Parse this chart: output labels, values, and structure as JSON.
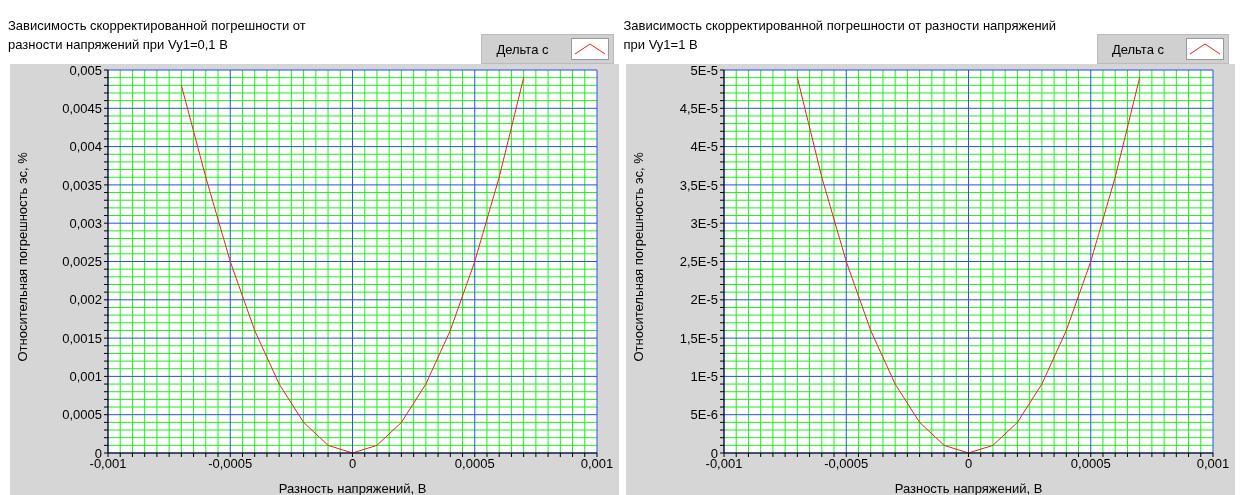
{
  "chart_data": [
    {
      "type": "line",
      "title": "Зависимость скорректированной погрешности от разности напряжений при Vy1=0,1 В",
      "xlabel": "Разность напряжений, В",
      "ylabel": "Относительная погрешность эс, %",
      "x": [
        -0.0007,
        -0.0006,
        -0.0005,
        -0.0004,
        -0.0003,
        -0.0002,
        -0.0001,
        0,
        0.0001,
        0.0002,
        0.0003,
        0.0004,
        0.0005,
        0.0006,
        0.0007
      ],
      "series": [
        {
          "name": "Дельта с",
          "color": "#e8231e",
          "values": [
            0.0048,
            0.0036,
            0.0025,
            0.0016,
            0.0009,
            0.0004,
            0.0001,
            0,
            0.0001,
            0.0004,
            0.0009,
            0.0016,
            0.0025,
            0.0036,
            0.0049
          ]
        }
      ],
      "xlim": [
        -0.001,
        0.001
      ],
      "xticks": [
        {
          "value": -0.001,
          "label": "-0,001"
        },
        {
          "value": -0.00095,
          "label": null
        },
        {
          "value": -0.0009,
          "label": null
        },
        {
          "value": -0.00085,
          "label": null
        },
        {
          "value": -0.0008,
          "label": null
        },
        {
          "value": -0.00075,
          "label": null
        },
        {
          "value": -0.0007,
          "label": null
        },
        {
          "value": -0.00065,
          "label": null
        },
        {
          "value": -0.0006,
          "label": null
        },
        {
          "value": -0.00055,
          "label": null
        },
        {
          "value": -0.0005,
          "label": "-0,0005"
        },
        {
          "value": -0.00045,
          "label": null
        },
        {
          "value": -0.0004,
          "label": null
        },
        {
          "value": -0.00035,
          "label": null
        },
        {
          "value": -0.0003,
          "label": null
        },
        {
          "value": -0.00025,
          "label": null
        },
        {
          "value": -0.0002,
          "label": null
        },
        {
          "value": -0.00015,
          "label": null
        },
        {
          "value": -0.0001,
          "label": null
        },
        {
          "value": -5e-05,
          "label": null
        },
        0,
        {
          "value": 5e-05,
          "label": null
        },
        {
          "value": 0.0001,
          "label": null
        },
        {
          "value": 0.00015,
          "label": null
        },
        {
          "value": 0.0002,
          "label": null
        },
        {
          "value": 0.00025,
          "label": null
        },
        {
          "value": 0.0003,
          "label": null
        },
        {
          "value": 0.00035,
          "label": null
        },
        {
          "value": 0.0004,
          "label": null
        },
        {
          "value": 0.00045,
          "label": null
        },
        {
          "value": 0.0005,
          "label": "0,0005"
        },
        {
          "value": 0.00055,
          "label": null
        },
        {
          "value": 0.0006,
          "label": null
        },
        {
          "value": 0.00065,
          "label": null
        },
        {
          "value": 0.0007,
          "label": null
        },
        {
          "value": 0.00075,
          "label": null
        },
        {
          "value": 0.0008,
          "label": null
        },
        {
          "value": 0.00085,
          "label": null
        },
        {
          "value": 0.0009,
          "label": null
        },
        {
          "value": 0.00095,
          "label": null
        },
        {
          "value": 0.001,
          "label": "0,001"
        }
      ],
      "ylim": [
        0,
        0.005
      ],
      "yticks": [
        0,
        {
          "value": 0.0001,
          "label": null
        },
        {
          "value": 0.0002,
          "label": null
        },
        {
          "value": 0.0003,
          "label": null
        },
        {
          "value": 0.0004,
          "label": null
        },
        {
          "value": 0.0005,
          "label": "0,0005"
        },
        {
          "value": 0.0006,
          "label": null
        },
        {
          "value": 0.0007,
          "label": null
        },
        {
          "value": 0.0008,
          "label": null
        },
        {
          "value": 0.0009,
          "label": null
        },
        {
          "value": 0.001,
          "label": "0,001"
        },
        {
          "value": 0.0011,
          "label": null
        },
        {
          "value": 0.0012,
          "label": null
        },
        {
          "value": 0.0013,
          "label": null
        },
        {
          "value": 0.0014,
          "label": null
        },
        {
          "value": 0.0015,
          "label": "0,0015"
        },
        {
          "value": 0.0016,
          "label": null
        },
        {
          "value": 0.0017,
          "label": null
        },
        {
          "value": 0.0018,
          "label": null
        },
        {
          "value": 0.0019,
          "label": null
        },
        {
          "value": 0.002,
          "label": "0,002"
        },
        {
          "value": 0.0021,
          "label": null
        },
        {
          "value": 0.0022,
          "label": null
        },
        {
          "value": 0.0023,
          "label": null
        },
        {
          "value": 0.0024,
          "label": null
        },
        {
          "value": 0.0025,
          "label": "0,0025"
        },
        {
          "value": 0.0026,
          "label": null
        },
        {
          "value": 0.0027,
          "label": null
        },
        {
          "value": 0.0028,
          "label": null
        },
        {
          "value": 0.0029,
          "label": null
        },
        {
          "value": 0.003,
          "label": "0,003"
        },
        {
          "value": 0.0031,
          "label": null
        },
        {
          "value": 0.0032,
          "label": null
        },
        {
          "value": 0.0033,
          "label": null
        },
        {
          "value": 0.0034,
          "label": null
        },
        {
          "value": 0.0035,
          "label": "0,0035"
        },
        {
          "value": 0.0036,
          "label": null
        },
        {
          "value": 0.0037,
          "label": null
        },
        {
          "value": 0.0038,
          "label": null
        },
        {
          "value": 0.0039,
          "label": null
        },
        {
          "value": 0.004,
          "label": "0,004"
        },
        {
          "value": 0.0041,
          "label": null
        },
        {
          "value": 0.0042,
          "label": null
        },
        {
          "value": 0.0043,
          "label": null
        },
        {
          "value": 0.0044,
          "label": null
        },
        {
          "value": 0.0045,
          "label": "0,0045"
        },
        {
          "value": 0.0046,
          "label": null
        },
        {
          "value": 0.0047,
          "label": null
        },
        {
          "value": 0.0048,
          "label": null
        },
        {
          "value": 0.0049,
          "label": null
        },
        {
          "value": 0.005,
          "label": "0,005"
        }
      ],
      "grid": true,
      "legend": "top right",
      "marker": "none",
      "line_style": "solid"
    },
    {
      "type": "line",
      "title": "Зависимость скорректированной погрешности от разности напряжений при Vy1=1 В",
      "xlabel": "Разность напряжений, В",
      "ylabel": "Относительная погрешность эс, %",
      "x": [
        -0.0007,
        -0.0006,
        -0.0005,
        -0.0004,
        -0.0003,
        -0.0002,
        -0.0001,
        0,
        0.0001,
        0.0002,
        0.0003,
        0.0004,
        0.0005,
        0.0006,
        0.0007
      ],
      "series": [
        {
          "name": "Дельта с",
          "color": "#e8231e",
          "values": [
            4.9e-05,
            3.6e-05,
            2.5e-05,
            1.6e-05,
            9e-06,
            4e-06,
            1e-06,
            0,
            1e-06,
            4e-06,
            9e-06,
            1.6e-05,
            2.5e-05,
            3.6e-05,
            4.9e-05
          ]
        }
      ],
      "xlim": [
        -0.001,
        0.001
      ],
      "xticks": [
        {
          "value": -0.001,
          "label": "-0,001"
        },
        {
          "value": -0.00095,
          "label": null
        },
        {
          "value": -0.0009,
          "label": null
        },
        {
          "value": -0.00085,
          "label": null
        },
        {
          "value": -0.0008,
          "label": null
        },
        {
          "value": -0.00075,
          "label": null
        },
        {
          "value": -0.0007,
          "label": null
        },
        {
          "value": -0.00065,
          "label": null
        },
        {
          "value": -0.0006,
          "label": null
        },
        {
          "value": -0.00055,
          "label": null
        },
        {
          "value": -0.0005,
          "label": "-0,0005"
        },
        {
          "value": -0.00045,
          "label": null
        },
        {
          "value": -0.0004,
          "label": null
        },
        {
          "value": -0.00035,
          "label": null
        },
        {
          "value": -0.0003,
          "label": null
        },
        {
          "value": -0.00025,
          "label": null
        },
        {
          "value": -0.0002,
          "label": null
        },
        {
          "value": -0.00015,
          "label": null
        },
        {
          "value": -0.0001,
          "label": null
        },
        {
          "value": -5e-05,
          "label": null
        },
        0,
        {
          "value": 5e-05,
          "label": null
        },
        {
          "value": 0.0001,
          "label": null
        },
        {
          "value": 0.00015,
          "label": null
        },
        {
          "value": 0.0002,
          "label": null
        },
        {
          "value": 0.00025,
          "label": null
        },
        {
          "value": 0.0003,
          "label": null
        },
        {
          "value": 0.00035,
          "label": null
        },
        {
          "value": 0.0004,
          "label": null
        },
        {
          "value": 0.00045,
          "label": null
        },
        {
          "value": 0.0005,
          "label": "0,0005"
        },
        {
          "value": 0.00055,
          "label": null
        },
        {
          "value": 0.0006,
          "label": null
        },
        {
          "value": 0.00065,
          "label": null
        },
        {
          "value": 0.0007,
          "label": null
        },
        {
          "value": 0.00075,
          "label": null
        },
        {
          "value": 0.0008,
          "label": null
        },
        {
          "value": 0.00085,
          "label": null
        },
        {
          "value": 0.0009,
          "label": null
        },
        {
          "value": 0.00095,
          "label": null
        },
        {
          "value": 0.001,
          "label": "0,001"
        }
      ],
      "ylim": [
        0,
        5e-05
      ],
      "yticks": [
        0,
        {
          "value": 1e-06,
          "label": null
        },
        {
          "value": 2e-06,
          "label": null
        },
        {
          "value": 3e-06,
          "label": null
        },
        {
          "value": 4e-06,
          "label": null
        },
        {
          "value": 5e-06,
          "label": "5E-6"
        },
        {
          "value": 6e-06,
          "label": null
        },
        {
          "value": 7e-06,
          "label": null
        },
        {
          "value": 8e-06,
          "label": null
        },
        {
          "value": 9e-06,
          "label": null
        },
        {
          "value": 1e-05,
          "label": "1E-5"
        },
        {
          "value": 1.1e-05,
          "label": null
        },
        {
          "value": 1.2e-05,
          "label": null
        },
        {
          "value": 1.3e-05,
          "label": null
        },
        {
          "value": 1.4e-05,
          "label": null
        },
        {
          "value": 1.5e-05,
          "label": "1,5E-5"
        },
        {
          "value": 1.6e-05,
          "label": null
        },
        {
          "value": 1.7e-05,
          "label": null
        },
        {
          "value": 1.8e-05,
          "label": null
        },
        {
          "value": 1.9e-05,
          "label": null
        },
        {
          "value": 2e-05,
          "label": "2E-5"
        },
        {
          "value": 2.1e-05,
          "label": null
        },
        {
          "value": 2.2e-05,
          "label": null
        },
        {
          "value": 2.3e-05,
          "label": null
        },
        {
          "value": 2.4e-05,
          "label": null
        },
        {
          "value": 2.5e-05,
          "label": "2,5E-5"
        },
        {
          "value": 2.6e-05,
          "label": null
        },
        {
          "value": 2.7e-05,
          "label": null
        },
        {
          "value": 2.8e-05,
          "label": null
        },
        {
          "value": 2.9e-05,
          "label": null
        },
        {
          "value": 3e-05,
          "label": "3E-5"
        },
        {
          "value": 3.1e-05,
          "label": null
        },
        {
          "value": 3.2e-05,
          "label": null
        },
        {
          "value": 3.3e-05,
          "label": null
        },
        {
          "value": 3.4e-05,
          "label": null
        },
        {
          "value": 3.5e-05,
          "label": "3,5E-5"
        },
        {
          "value": 3.6e-05,
          "label": null
        },
        {
          "value": 3.7e-05,
          "label": null
        },
        {
          "value": 3.8e-05,
          "label": null
        },
        {
          "value": 3.9e-05,
          "label": null
        },
        {
          "value": 4e-05,
          "label": "4E-5"
        },
        {
          "value": 4.1e-05,
          "label": null
        },
        {
          "value": 4.2e-05,
          "label": null
        },
        {
          "value": 4.3e-05,
          "label": null
        },
        {
          "value": 4.4e-05,
          "label": null
        },
        {
          "value": 4.5e-05,
          "label": "4,5E-5"
        },
        {
          "value": 4.6e-05,
          "label": null
        },
        {
          "value": 4.7e-05,
          "label": null
        },
        {
          "value": 4.8e-05,
          "label": null
        },
        {
          "value": 4.9e-05,
          "label": null
        },
        {
          "value": 5e-05,
          "label": "5E-5"
        }
      ],
      "grid": true,
      "legend": "top right",
      "marker": "none",
      "line_style": "solid"
    }
  ]
}
